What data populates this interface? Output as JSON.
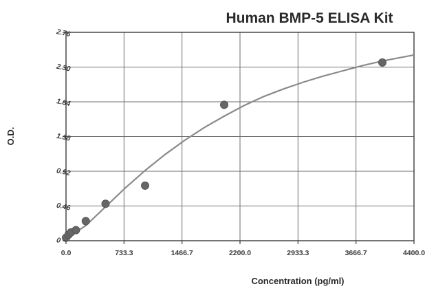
{
  "chart_data": {
    "type": "scatter",
    "title": "Human BMP-5 ELISA Kit",
    "xlabel": "Concentration (pg/ml)",
    "ylabel": "O.D.",
    "xlim": [
      0,
      4400
    ],
    "ylim": [
      0,
      2.76
    ],
    "x_ticks": [
      "0.0",
      "733.3",
      "1466.7",
      "2200.0",
      "2933.3",
      "3666.7",
      "4400.0"
    ],
    "y_ticks": [
      "0",
      "0.46",
      "0.92",
      "1.38",
      "1.84",
      "2.30",
      "2.76"
    ],
    "grid": true,
    "points": [
      {
        "x": 0,
        "y": 0.04
      },
      {
        "x": 31.25,
        "y": 0.08
      },
      {
        "x": 62.5,
        "y": 0.11
      },
      {
        "x": 125,
        "y": 0.14
      },
      {
        "x": 250,
        "y": 0.26
      },
      {
        "x": 500,
        "y": 0.49
      },
      {
        "x": 1000,
        "y": 0.73
      },
      {
        "x": 2000,
        "y": 1.8
      },
      {
        "x": 4000,
        "y": 2.36
      }
    ],
    "fit_curve": {
      "x": [
        0,
        250,
        500,
        750,
        1000,
        1250,
        1500,
        1750,
        2000,
        2250,
        2500,
        2750,
        3000,
        3250,
        3500,
        3750,
        4000,
        4250,
        4400
      ],
      "y": [
        0.03,
        0.2,
        0.45,
        0.7,
        0.93,
        1.14,
        1.33,
        1.5,
        1.65,
        1.79,
        1.91,
        2.01,
        2.1,
        2.18,
        2.25,
        2.32,
        2.38,
        2.43,
        2.46
      ]
    }
  }
}
